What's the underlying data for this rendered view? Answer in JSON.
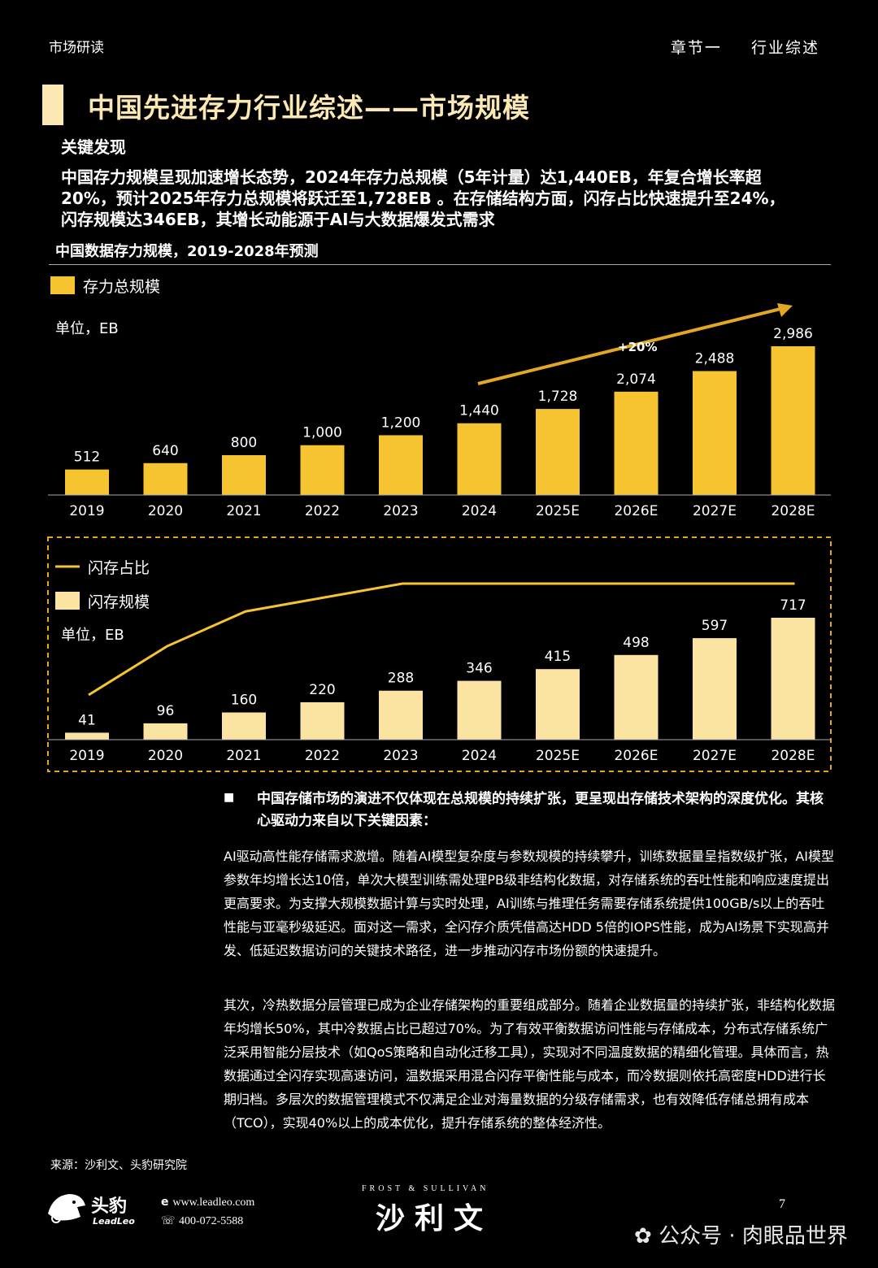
{
  "header": {
    "left": "市场研读",
    "chapter": "章节一",
    "section": "行业综述"
  },
  "title": "中国先进存力行业综述——市场规模",
  "key_findings": {
    "label": "关键发现",
    "text": "中国存力规模呈现加速增长态势，2024年存力总规模（5年计量）达1,440EB，年复合增长率超20%，预计2025年存力总规模将跃迁至1,728EB 。在存储结构方面，闪存占比快速提升至24%，闪存规模达346EB，其增长动能源于AI与大数据爆发式需求"
  },
  "chart_title": "中国数据存力规模，2019-2028年预测",
  "chart_data": [
    {
      "type": "bar",
      "categories": [
        "2019",
        "2020",
        "2021",
        "2022",
        "2023",
        "2024",
        "2025E",
        "2026E",
        "2027E",
        "2028E"
      ],
      "values": [
        512,
        640,
        800,
        1000,
        1200,
        1440,
        1728,
        2074,
        2488,
        2986
      ],
      "labels": [
        "512",
        "640",
        "800",
        "1,000",
        "1,200",
        "1,440",
        "1,728",
        "2,074",
        "2,488",
        "2,986"
      ],
      "series_name": "存力总规模",
      "unit": "单位，EB",
      "annotation": "+20%",
      "color": "#f6c431"
    },
    {
      "type": "bar+line",
      "categories": [
        "2019",
        "2020",
        "2021",
        "2022",
        "2023",
        "2024",
        "2025E",
        "2026E",
        "2027E",
        "2028E"
      ],
      "values": [
        41,
        96,
        160,
        220,
        288,
        346,
        415,
        498,
        597,
        717
      ],
      "series_name": "闪存规模",
      "line_series_name": "闪存占比",
      "line_values_estimated_pct": [
        8,
        15,
        20,
        22,
        24,
        24,
        24,
        24,
        24,
        24
      ],
      "unit": "单位，EB",
      "bar_color": "#fbe3a1",
      "line_color": "#f6c431"
    }
  ],
  "bullet": "中国存储市场的演进不仅体现在总规模的持续扩张，更呈现出存储技术架构的深度优化。其核心驱动力来自以下关键因素：",
  "paragraphs": [
    "AI驱动高性能存储需求激增。随着AI模型复杂度与参数规模的持续攀升，训练数据量呈指数级扩张，AI模型参数年均增长达10倍，单次大模型训练需处理PB级非结构化数据，对存储系统的吞吐性能和响应速度提出更高要求。为支撑大规模数据计算与实时处理，AI训练与推理任务需要存储系统提供100GB/s以上的吞吐性能与亚毫秒级延迟。面对这一需求，全闪存介质凭借高达HDD 5倍的IOPS性能，成为AI场景下实现高并发、低延迟数据访问的关键技术路径，进一步推动闪存市场份额的快速提升。",
    "其次，冷热数据分层管理已成为企业存储架构的重要组成部分。随着企业数据量的持续扩张，非结构化数据年均增长50%，其中冷数据占比已超过70%。为了有效平衡数据访问性能与存储成本，分布式存储系统广泛采用智能分层技术（如QoS策略和自动化迁移工具），实现对不同温度数据的精细化管理。具体而言，热数据通过全闪存实现高速访问，温数据采用混合闪存平衡性能与成本，而冷数据则依托高密度HDD进行长期归档。多层次的数据管理模式不仅满足企业对海量数据的分级存储需求，也有效降低存储总拥有成本（TCO），实现40%以上的成本优化，提升存储系统的整体经济性。"
  ],
  "source": "来源：沙利文、头豹研究院",
  "footer": {
    "brand_cn": "头豹",
    "brand_en": "LeadLeo",
    "website": "www.leadleo.com",
    "phone": "400-072-5588",
    "partner_en": "FROST & SULLIVAN",
    "partner_cn": "沙利文",
    "page": "7",
    "watermark": "公众号 · 肉眼品世界"
  }
}
